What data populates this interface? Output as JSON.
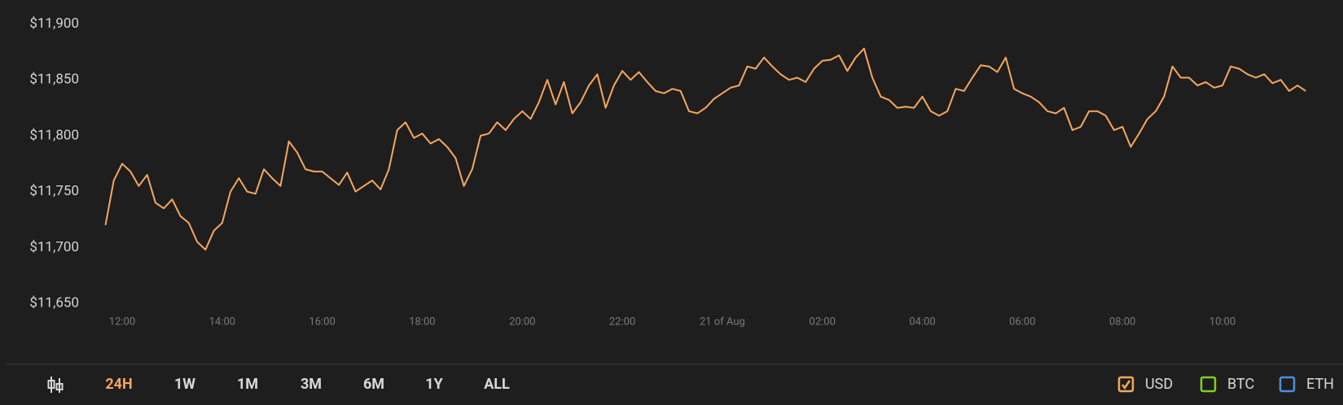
{
  "chart_data": {
    "type": "line",
    "categories": [
      null,
      null,
      "12:00",
      null,
      null,
      null,
      null,
      null,
      null,
      null,
      null,
      null,
      null,
      null,
      "14:00",
      null,
      null,
      null,
      null,
      null,
      null,
      null,
      null,
      null,
      null,
      null,
      "16:00",
      null,
      null,
      null,
      null,
      null,
      null,
      null,
      null,
      null,
      null,
      null,
      "18:00",
      null,
      null,
      null,
      null,
      null,
      null,
      null,
      null,
      null,
      null,
      null,
      "20:00",
      null,
      null,
      null,
      null,
      null,
      null,
      null,
      null,
      null,
      null,
      null,
      "22:00",
      null,
      null,
      null,
      null,
      null,
      null,
      null,
      null,
      null,
      null,
      null,
      "21 of Aug",
      null,
      null,
      null,
      null,
      null,
      null,
      null,
      null,
      null,
      null,
      null,
      "02:00",
      null,
      null,
      null,
      null,
      null,
      null,
      null,
      null,
      null,
      null,
      null,
      "04:00",
      null,
      null,
      null,
      null,
      null,
      null,
      null,
      null,
      null,
      null,
      null,
      "06:00",
      null,
      null,
      null,
      null,
      null,
      null,
      null,
      null,
      null,
      null,
      null,
      "08:00",
      null,
      null,
      null,
      null,
      null,
      null,
      null,
      null,
      null,
      null,
      null,
      "10:00",
      null,
      null,
      null,
      null,
      null,
      null,
      null,
      null,
      null,
      null
    ],
    "series": [
      {
        "name": "USD",
        "color": "#f6a75e",
        "checked": true,
        "values": [
          11720,
          11760,
          11775,
          11768,
          11755,
          11765,
          11740,
          11735,
          11743,
          11728,
          11722,
          11705,
          11698,
          11715,
          11722,
          11750,
          11762,
          11750,
          11748,
          11770,
          11762,
          11755,
          11795,
          11785,
          11770,
          11768,
          11768,
          11762,
          11756,
          11767,
          11750,
          11755,
          11760,
          11752,
          11770,
          11805,
          11812,
          11798,
          11802,
          11793,
          11797,
          11790,
          11780,
          11755,
          11770,
          11800,
          11802,
          11812,
          11805,
          11815,
          11822,
          11815,
          11830,
          11850,
          11828,
          11848,
          11820,
          11830,
          11845,
          11855,
          11825,
          11845,
          11858,
          11850,
          11857,
          11848,
          11840,
          11838,
          11842,
          11840,
          11822,
          11820,
          11825,
          11833,
          11838,
          11843,
          11845,
          11862,
          11860,
          11870,
          11862,
          11855,
          11850,
          11852,
          11848,
          11860,
          11867,
          11868,
          11872,
          11858,
          11870,
          11878,
          11852,
          11835,
          11832,
          11825,
          11826,
          11825,
          11835,
          11822,
          11818,
          11822,
          11842,
          11840,
          11852,
          11863,
          11862,
          11857,
          11870,
          11842,
          11838,
          11835,
          11830,
          11822,
          11820,
          11825,
          11805,
          11808,
          11822,
          11822,
          11818,
          11805,
          11808,
          11790,
          11802,
          11815,
          11822,
          11835,
          11862,
          11852,
          11852,
          11845,
          11848,
          11843,
          11845,
          11862,
          11860,
          11855,
          11852,
          11855,
          11847,
          11850,
          11840,
          11845,
          11840
        ]
      }
    ],
    "inactive_series": [
      {
        "name": "BTC",
        "color": "#7ed321",
        "checked": false
      },
      {
        "name": "ETH",
        "color": "#4a90e2",
        "checked": false
      }
    ],
    "ylim": [
      11650,
      11900
    ],
    "yticks": [
      {
        "value": 11650,
        "label": "$11,650"
      },
      {
        "value": 11700,
        "label": "$11,700"
      },
      {
        "value": 11750,
        "label": "$11,750"
      },
      {
        "value": 11800,
        "label": "$11,800"
      },
      {
        "value": 11850,
        "label": "$11,850"
      },
      {
        "value": 11900,
        "label": "$11,900"
      }
    ],
    "grid": false
  },
  "ranges": [
    {
      "label": "24H",
      "selected": true
    },
    {
      "label": "1W",
      "selected": false
    },
    {
      "label": "1M",
      "selected": false
    },
    {
      "label": "3M",
      "selected": false
    },
    {
      "label": "6M",
      "selected": false
    },
    {
      "label": "1Y",
      "selected": false
    },
    {
      "label": "ALL",
      "selected": false
    }
  ]
}
